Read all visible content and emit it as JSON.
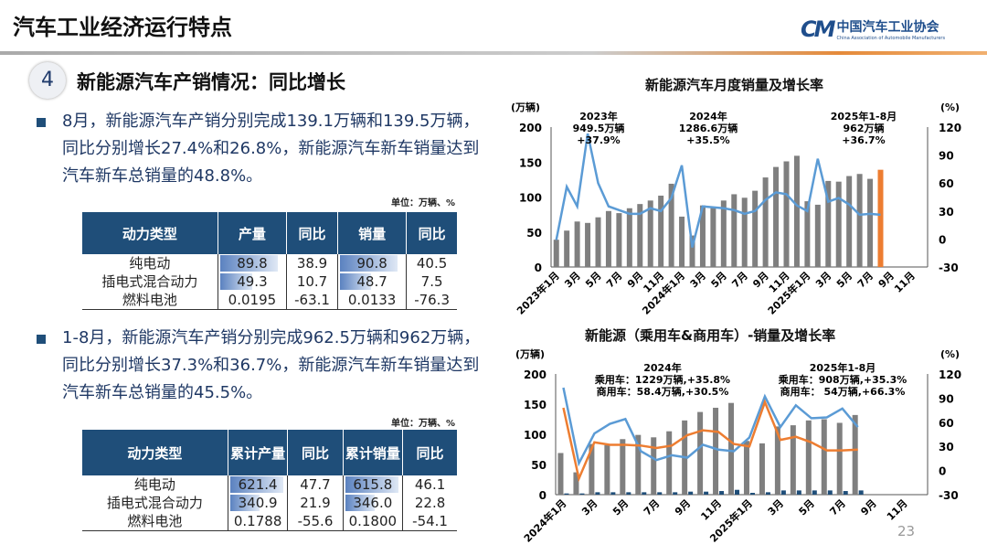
{
  "header": {
    "title": "汽车工业经济运行特点",
    "logo_cn": "中国汽车工业协会",
    "logo_en": "China Association of Automobile Manufacturers",
    "logo_mark": "CM"
  },
  "section": {
    "number": "4",
    "title": "新能源汽车产销情况：同比增长"
  },
  "bullet1": "8月，新能源汽车产销分别完成139.1万辆和139.5万辆，同比分别增长27.4%和26.8%，新能源汽车新车销量达到汽车新车总销量的48.8%。",
  "unit1": "单位：万辆、%",
  "table1": {
    "headers": [
      "动力类型",
      "产量",
      "同比",
      "销量",
      "同比"
    ],
    "rows": [
      {
        "type": "纯电动",
        "prod": "89.8",
        "prod_yoy": "38.9",
        "sales": "90.8",
        "sales_yoy": "40.5",
        "prod_fill": 0.9,
        "sales_fill": 0.9
      },
      {
        "type": "插电式混合动力",
        "prod": "49.3",
        "prod_yoy": "10.7",
        "sales": "48.7",
        "sales_yoy": "7.5",
        "prod_fill": 0.5,
        "sales_fill": 0.48
      },
      {
        "type": "燃料电池",
        "prod": "0.0195",
        "prod_yoy": "-63.1",
        "sales": "0.0133",
        "sales_yoy": "-76.3",
        "prod_fill": 0,
        "sales_fill": 0
      }
    ]
  },
  "bullet2": "1-8月，新能源汽车产销分别完成962.5万辆和962万辆，同比分别增长37.3%和36.7%，新能源汽车新车销量达到汽车新车总销量的45.5%。",
  "unit2": "单位：万辆、%",
  "table2": {
    "headers": [
      "动力类型",
      "累计产量",
      "同比",
      "累计销量",
      "同比"
    ],
    "rows": [
      {
        "type": "纯电动",
        "prod": "621.4",
        "prod_yoy": "47.7",
        "sales": "615.8",
        "sales_yoy": "46.1",
        "prod_fill": 0.95,
        "sales_fill": 0.95
      },
      {
        "type": "插电式混合动力",
        "prod": "340.9",
        "prod_yoy": "21.9",
        "sales": "346.0",
        "sales_yoy": "22.8",
        "prod_fill": 0.52,
        "sales_fill": 0.53
      },
      {
        "type": "燃料电池",
        "prod": "0.1788",
        "prod_yoy": "-55.6",
        "sales": "0.1800",
        "sales_yoy": "-54.1",
        "prod_fill": 0,
        "sales_fill": 0
      }
    ]
  },
  "page_number": "23",
  "chart_data": [
    {
      "type": "bar+line",
      "title": "新能源汽车月度销量及增长率",
      "ylabel": "(万辆)",
      "y2label": "(%)",
      "ylim": [
        0,
        200
      ],
      "y2lim": [
        -30,
        120
      ],
      "yticks": [
        "0",
        "50",
        "100",
        "150",
        "200"
      ],
      "y2ticks": [
        "-30",
        "0",
        "30",
        "60",
        "90",
        "120"
      ],
      "xticklabels": [
        "2023年1月",
        "3月",
        "5月",
        "7月",
        "9月",
        "11月",
        "2024年1月",
        "3月",
        "5月",
        "7月",
        "9月",
        "11月",
        "2025年1月",
        "3月",
        "5月",
        "7月",
        "9月",
        "11月"
      ],
      "annotations": [
        "2023年",
        "949.5万辆",
        "+37.9%",
        "2024年",
        "1286.6万辆",
        "+35.5%",
        "2025年1-8月",
        "962万辆",
        "+36.7%"
      ],
      "colors": {
        "bar": "#7f7f7f",
        "highlight": "#ed7d31",
        "line": "#5b9bd5"
      },
      "sales": [
        39,
        52,
        65,
        63,
        71,
        80,
        77,
        84,
        90,
        95,
        102,
        119,
        72,
        45,
        88,
        85,
        95,
        104,
        99,
        109,
        128,
        143,
        151,
        159,
        94,
        89,
        123,
        122,
        130,
        133,
        126,
        139
      ],
      "growth": [
        -1,
        56,
        35,
        113,
        60,
        35,
        31,
        27,
        27,
        33,
        30,
        44,
        79,
        -9,
        35,
        34,
        33,
        31,
        27,
        30,
        42,
        50,
        48,
        36,
        30,
        86,
        40,
        44,
        37,
        26,
        27,
        26
      ]
    },
    {
      "type": "bar+line",
      "title": "新能源（乘用车&商用车）-销量及增长率",
      "ylabel": "(万辆)",
      "y2label": "(%)",
      "ylim": [
        0,
        200
      ],
      "y2lim": [
        -30,
        120
      ],
      "yticks": [
        "0",
        "50",
        "100",
        "150",
        "200"
      ],
      "y2ticks": [
        "-30",
        "0",
        "30",
        "60",
        "90",
        "120"
      ],
      "xticklabels": [
        "2024年1月",
        "3月",
        "5月",
        "7月",
        "9月",
        "11月",
        "2025年1月",
        "3月",
        "5月",
        "7月",
        "9月",
        "11月"
      ],
      "annotations": [
        "2024年",
        "乘用车：1229万辆,+35.8%",
        "商用车：58.4万辆,+30.5%",
        "2025年1-8月",
        "乘用车：908万辆,+35.3%",
        "商用车：  54万辆,+66.3%"
      ],
      "colors": {
        "bar1": "#7f7f7f",
        "bar2": "#1f4e79",
        "line1": "#5b9bd5",
        "line2": "#ed7d31"
      },
      "passenger_sales": [
        69,
        37,
        84,
        82,
        92,
        99,
        95,
        105,
        123,
        137,
        144,
        152,
        89,
        85,
        113,
        115,
        123,
        125,
        119,
        132
      ],
      "commercial_sales": [
        2,
        2,
        4,
        4,
        4,
        4,
        4,
        4,
        5,
        5,
        6,
        8,
        3,
        4,
        7,
        7,
        7,
        7,
        6,
        7
      ],
      "growth_blue": [
        103,
        9,
        46,
        58,
        64,
        24,
        13,
        19,
        16,
        32,
        26,
        24,
        41,
        92,
        54,
        81,
        65,
        66,
        77,
        54
      ],
      "growth_orange": [
        78,
        -10,
        35,
        32,
        32,
        31,
        28,
        31,
        44,
        50,
        48,
        33,
        30,
        85,
        38,
        42,
        35,
        25,
        25,
        26
      ]
    }
  ]
}
